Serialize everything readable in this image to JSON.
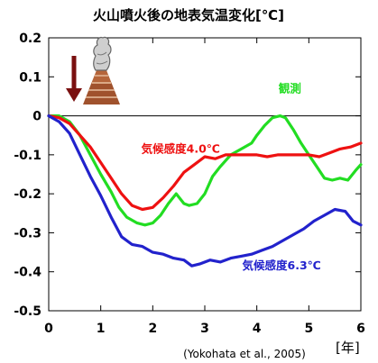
{
  "chart_data": {
    "type": "line",
    "title": "火山噴火後の地表気温変化[℃]",
    "xlabel": "[年]",
    "ylabel": "",
    "xlim": [
      0,
      6
    ],
    "ylim": [
      -0.5,
      0.2
    ],
    "x_ticks": [
      "0",
      "1",
      "2",
      "3",
      "4",
      "5",
      "6"
    ],
    "y_ticks": [
      "0.2",
      "0.1",
      "0",
      "-0.1",
      "-0.2",
      "-0.3",
      "-0.4",
      "-0.5"
    ],
    "grid": false,
    "reference_line_y": 0,
    "citation": "(Yokohata et al., 2005)",
    "series": [
      {
        "name": "観測",
        "color": "#22dd22",
        "x": [
          0,
          0.2,
          0.4,
          0.6,
          0.8,
          1.0,
          1.2,
          1.35,
          1.5,
          1.7,
          1.85,
          2.0,
          2.15,
          2.3,
          2.45,
          2.6,
          2.7,
          2.85,
          3.0,
          3.15,
          3.3,
          3.5,
          3.7,
          3.9,
          4.0,
          4.15,
          4.3,
          4.45,
          4.55,
          4.7,
          4.85,
          5.0,
          5.15,
          5.3,
          5.45,
          5.6,
          5.75,
          5.9,
          6.0
        ],
        "values": [
          0,
          0.0,
          -0.015,
          -0.05,
          -0.1,
          -0.15,
          -0.195,
          -0.235,
          -0.26,
          -0.275,
          -0.28,
          -0.275,
          -0.255,
          -0.225,
          -0.2,
          -0.225,
          -0.23,
          -0.225,
          -0.2,
          -0.155,
          -0.13,
          -0.1,
          -0.085,
          -0.07,
          -0.05,
          -0.025,
          -0.005,
          0.0,
          -0.005,
          -0.035,
          -0.07,
          -0.1,
          -0.13,
          -0.16,
          -0.165,
          -0.16,
          -0.165,
          -0.14,
          -0.125
        ]
      },
      {
        "name": "気候感度4.0℃",
        "color": "#ee1111",
        "x": [
          0,
          0.2,
          0.4,
          0.6,
          0.8,
          1.0,
          1.2,
          1.4,
          1.6,
          1.8,
          2.0,
          2.2,
          2.4,
          2.6,
          2.8,
          3.0,
          3.2,
          3.4,
          3.6,
          3.8,
          4.0,
          4.2,
          4.4,
          4.6,
          4.8,
          5.0,
          5.2,
          5.4,
          5.6,
          5.8,
          6.0
        ],
        "values": [
          0,
          -0.005,
          -0.02,
          -0.05,
          -0.08,
          -0.12,
          -0.16,
          -0.2,
          -0.23,
          -0.24,
          -0.235,
          -0.21,
          -0.18,
          -0.145,
          -0.125,
          -0.105,
          -0.11,
          -0.1,
          -0.1,
          -0.1,
          -0.1,
          -0.105,
          -0.1,
          -0.1,
          -0.1,
          -0.1,
          -0.105,
          -0.095,
          -0.085,
          -0.08,
          -0.07
        ]
      },
      {
        "name": "気候感度6.3℃",
        "color": "#2222cc",
        "x": [
          0,
          0.2,
          0.4,
          0.6,
          0.8,
          1.0,
          1.2,
          1.4,
          1.6,
          1.8,
          2.0,
          2.2,
          2.4,
          2.6,
          2.75,
          2.9,
          3.1,
          3.3,
          3.5,
          3.7,
          3.9,
          4.1,
          4.3,
          4.5,
          4.7,
          4.9,
          5.1,
          5.3,
          5.5,
          5.7,
          5.85,
          6.0
        ],
        "values": [
          0,
          -0.015,
          -0.045,
          -0.1,
          -0.155,
          -0.205,
          -0.26,
          -0.31,
          -0.33,
          -0.335,
          -0.35,
          -0.355,
          -0.365,
          -0.37,
          -0.385,
          -0.38,
          -0.37,
          -0.375,
          -0.365,
          -0.36,
          -0.355,
          -0.345,
          -0.335,
          -0.32,
          -0.305,
          -0.29,
          -0.27,
          -0.255,
          -0.24,
          -0.245,
          -0.27,
          -0.28
        ]
      }
    ],
    "annotations": [
      {
        "text": "観測",
        "color": "#22dd22"
      },
      {
        "text": "気候感度4.0℃",
        "color": "#ee1111"
      },
      {
        "text": "気候感度6.3℃",
        "color": "#2222cc"
      }
    ]
  }
}
